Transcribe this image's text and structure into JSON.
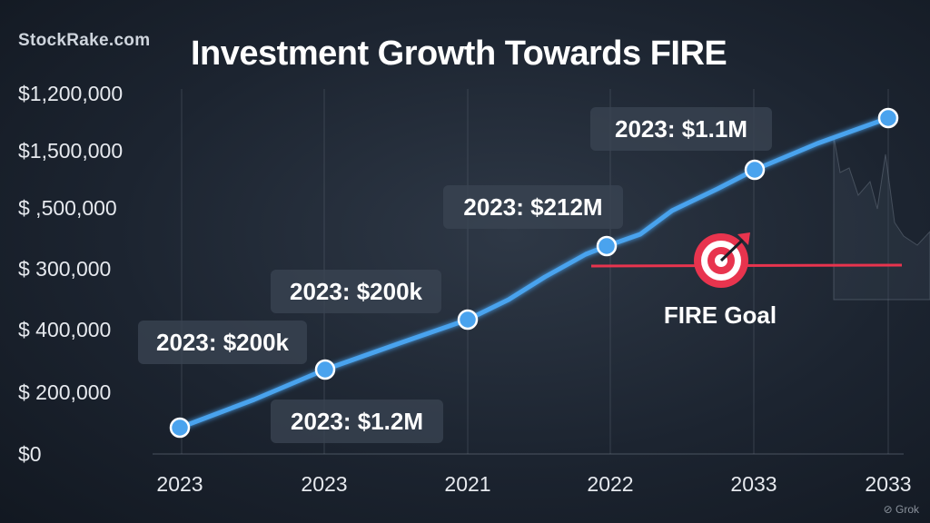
{
  "brand": "StockRake.com",
  "watermark": "Grok",
  "chart_data": {
    "type": "line",
    "title": "Investment Growth Towards FIRE",
    "xlabel": "",
    "ylabel": "",
    "x_tick_labels": [
      "2023",
      "2023",
      "2021",
      "2022",
      "2033",
      "2033"
    ],
    "y_tick_labels": [
      "$0",
      "$ 200,000",
      "$ 400,000",
      "$ 300,000",
      "$ ,500,000",
      "$1,500,000",
      "$1,200,000"
    ],
    "grid": true,
    "series": [
      {
        "values": [
          0.5,
          1.5,
          2.5,
          3.5,
          4.5,
          5.5
        ],
        "color": "#4aa3ee"
      }
    ],
    "x_positions": [
      0.12,
      1.0,
      2.0,
      3.0,
      4.0,
      5.0
    ],
    "annotations": [
      {
        "text": "2023: $200k",
        "anchor_point": 1
      },
      {
        "text": "2023: $1.2M",
        "anchor_point": 1
      },
      {
        "text": "2023: $200k",
        "anchor_point": 2
      },
      {
        "text": "2023: $212M",
        "anchor_point": 3
      },
      {
        "text": "2023: $1.1M",
        "anchor_point": 5
      }
    ],
    "goal": {
      "label": "FIRE Goal",
      "color": "#e8344e",
      "icon": "target-icon"
    }
  }
}
